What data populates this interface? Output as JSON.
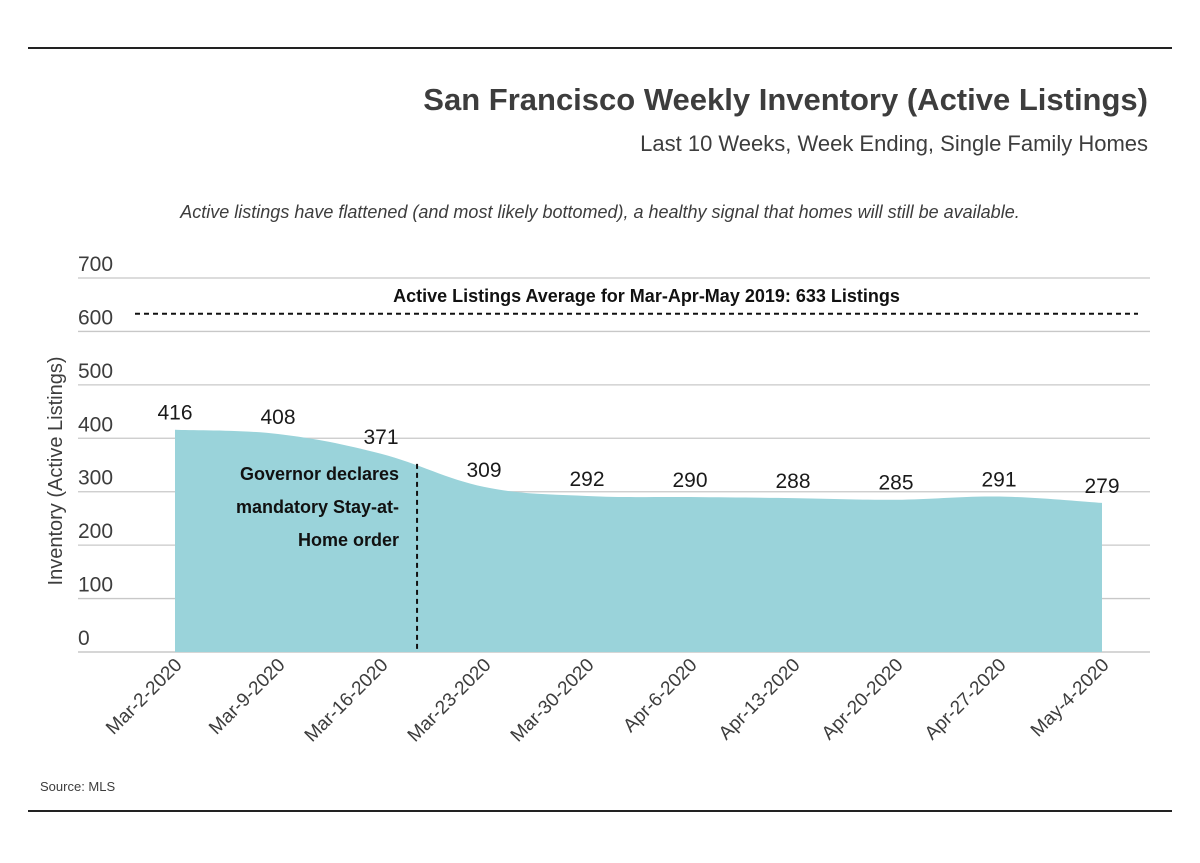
{
  "header": {
    "title": "San Francisco Weekly Inventory (Active Listings)",
    "subtitle": "Last 10 Weeks, Week Ending, Single Family Homes"
  },
  "note": "Active listings have flattened (and most likely bottomed), a healthy signal that homes will still be available.",
  "source": "Source: MLS",
  "chart_data": {
    "type": "area",
    "title": "San Francisco Weekly Inventory (Active Listings)",
    "subtitle": "Last 10 Weeks, Week Ending, Single Family Homes",
    "xlabel": "",
    "ylabel": "Inventory (Active Listings)",
    "ylim": [
      0,
      700
    ],
    "yticks": [
      0,
      100,
      200,
      300,
      400,
      500,
      600,
      700
    ],
    "grid": true,
    "categories": [
      "Mar-2-2020",
      "Mar-9-2020",
      "Mar-16-2020",
      "Mar-23-2020",
      "Mar-30-2020",
      "Apr-6-2020",
      "Apr-13-2020",
      "Apr-20-2020",
      "Apr-27-2020",
      "May-4-2020"
    ],
    "series": [
      {
        "values": [
          416,
          408,
          371,
          309,
          292,
          290,
          288,
          285,
          291,
          279
        ],
        "color": "#9ad3da"
      }
    ],
    "reference_line": {
      "value": 633,
      "label": "Active Listings Average for Mar-Apr-May 2019: 633 Listings",
      "style": "dashed"
    },
    "event_marker": {
      "x": "Mar-20-2020",
      "label_lines": [
        "Governor declares",
        "mandatory Stay-at-",
        "Home order"
      ],
      "style": "dashed"
    }
  }
}
